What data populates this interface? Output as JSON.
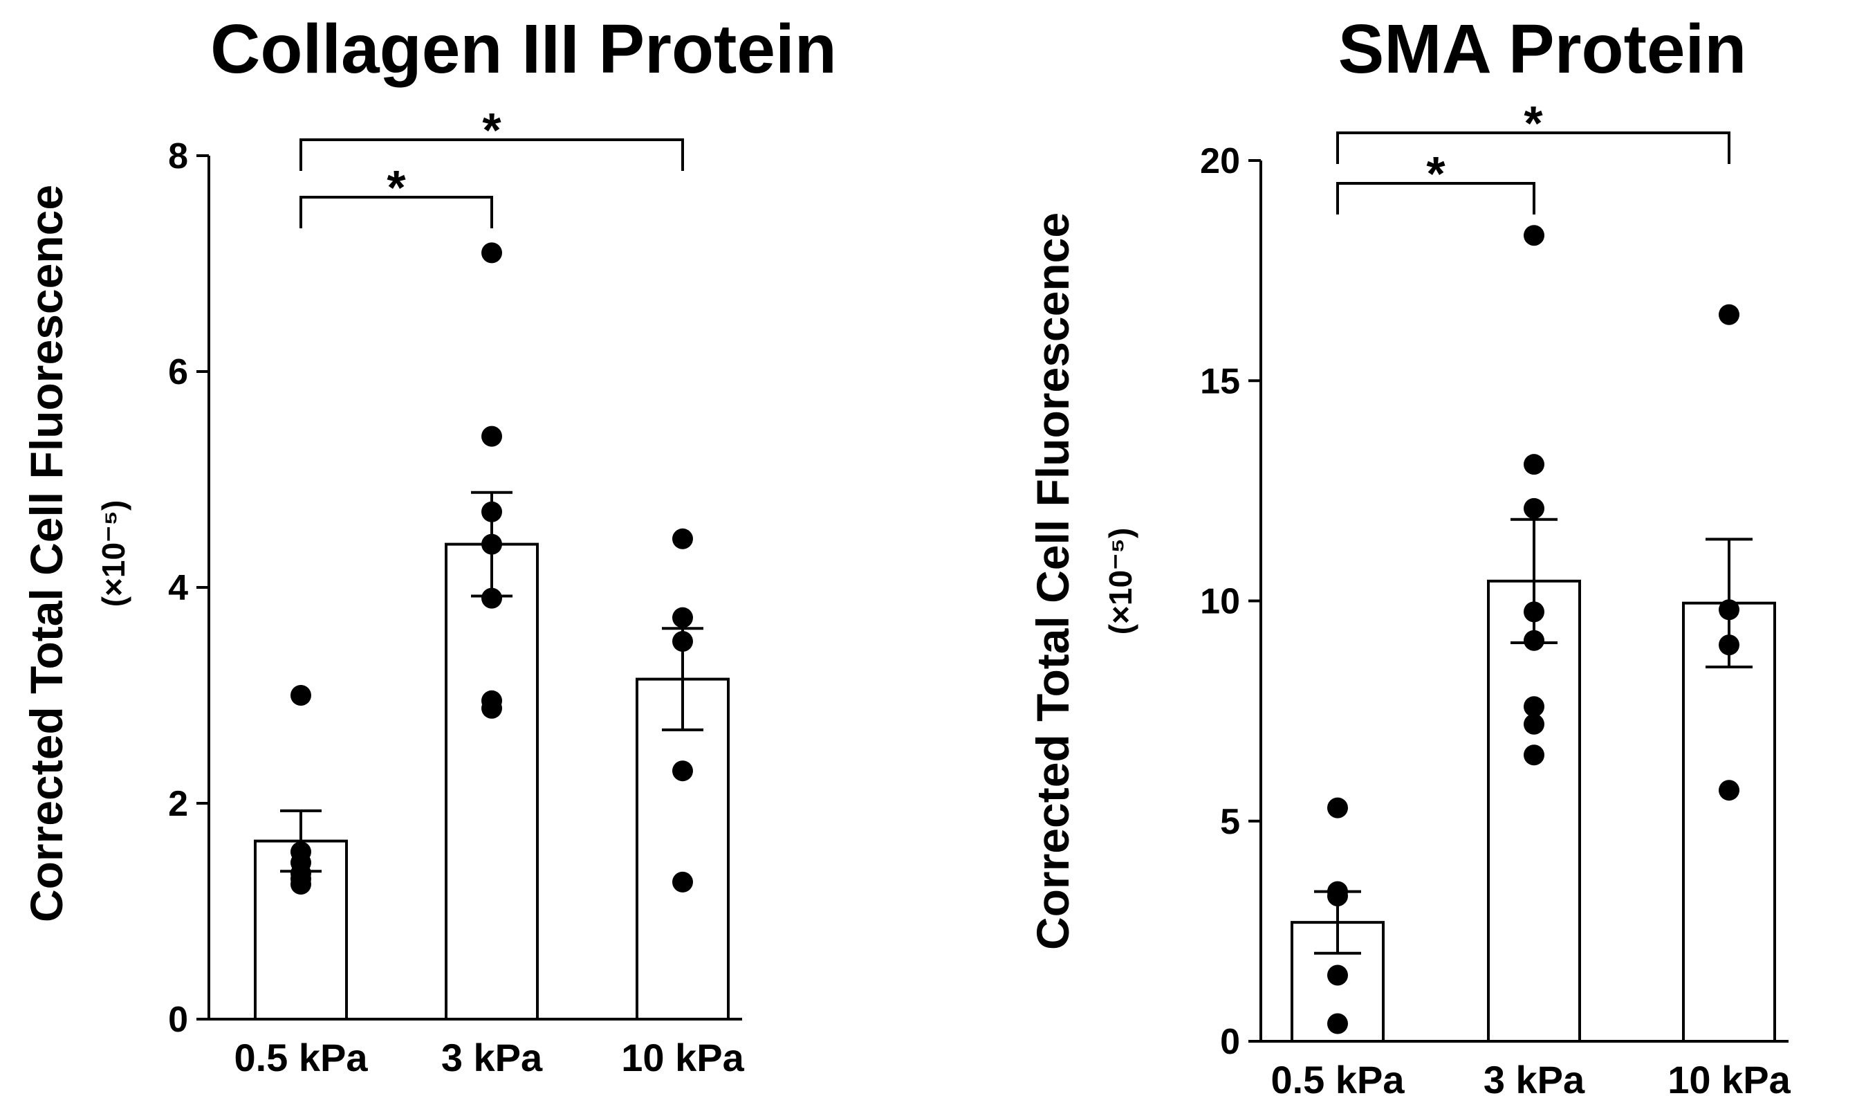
{
  "chart_data": [
    {
      "type": "bar",
      "title": "Collagen III Protein",
      "ylabel": "Corrected Total  Cell  Fluorescence",
      "yunit": "(×10⁻⁵)",
      "ylim": [
        0,
        8
      ],
      "yticks": [
        "0",
        "2",
        "4",
        "6",
        "8"
      ],
      "categories": [
        "0.5 kPa",
        "3 kPa",
        "10 kPa"
      ],
      "values": [
        1.65,
        4.4,
        3.15
      ],
      "error": [
        0.28,
        0.48,
        0.47
      ],
      "points": [
        [
          3.0,
          1.55,
          1.45,
          1.35,
          1.3,
          1.25
        ],
        [
          7.1,
          5.4,
          4.7,
          4.4,
          3.9,
          2.95,
          2.88
        ],
        [
          4.45,
          3.72,
          3.5,
          2.3,
          1.27
        ]
      ],
      "significance": [
        {
          "from": 0,
          "to": 1,
          "label": "*"
        },
        {
          "from": 0,
          "to": 2,
          "label": "*"
        }
      ]
    },
    {
      "type": "bar",
      "title": "SMA  Protein",
      "ylabel": "Corrected Total  Cell  Fluorescence",
      "yunit": "(×10⁻⁵)",
      "ylim": [
        0,
        20
      ],
      "yticks": [
        "0",
        "5",
        "10",
        "15",
        "20"
      ],
      "categories": [
        "0.5 kPa",
        "3 kPa",
        "10 kPa"
      ],
      "values": [
        2.7,
        10.45,
        9.95
      ],
      "error": [
        0.7,
        1.4,
        1.45
      ],
      "points": [
        [
          5.3,
          3.4,
          3.3,
          1.5,
          0.4
        ],
        [
          18.3,
          13.1,
          12.1,
          9.75,
          9.1,
          7.6,
          7.2,
          6.5
        ],
        [
          16.5,
          9.8,
          9.0,
          5.7
        ]
      ],
      "significance": [
        {
          "from": 0,
          "to": 1,
          "label": "*"
        },
        {
          "from": 0,
          "to": 2,
          "label": "*"
        }
      ]
    }
  ]
}
